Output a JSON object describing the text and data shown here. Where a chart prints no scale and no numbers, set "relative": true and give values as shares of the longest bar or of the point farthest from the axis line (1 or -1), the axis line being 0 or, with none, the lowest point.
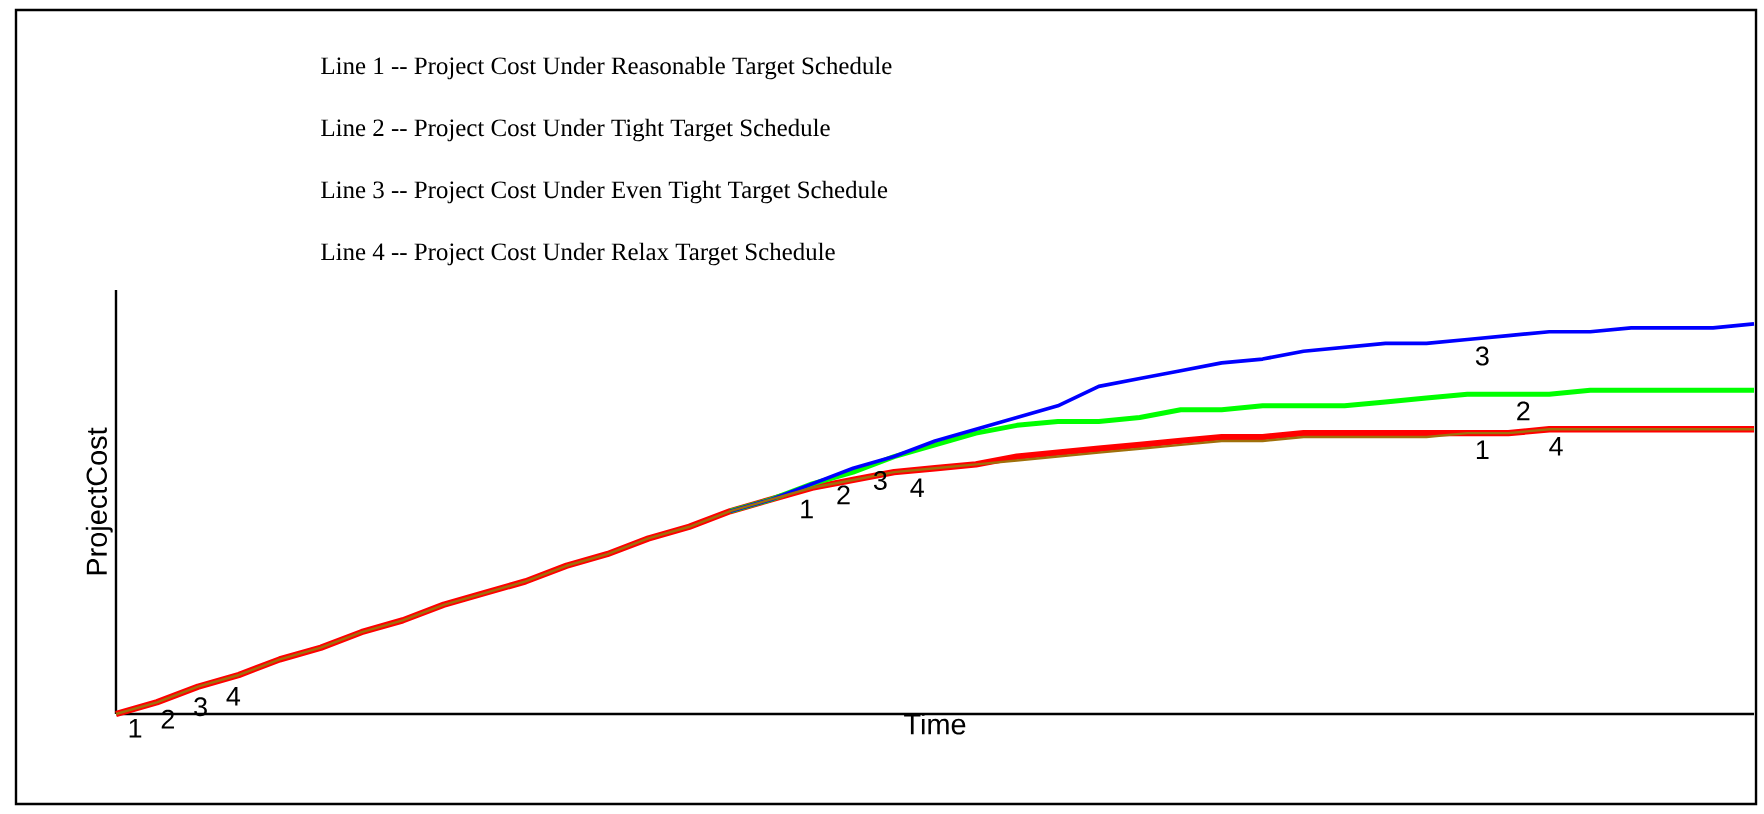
{
  "chart_data": {
    "type": "line",
    "relative": true,
    "xlabel": "Time",
    "ylabel": "ProjectCost",
    "annotations": [
      "Line 1 -- Project Cost Under Reasonable Target Schedule",
      "Line 2 --  Project Cost Under Tight Target Schedule",
      "Line 3 --  Project Cost Under Even Tight Target Schedule",
      "Line 4 --  Project Cost Under Relax Target Schedule"
    ],
    "categories": [
      null,
      null,
      null,
      null,
      null,
      null,
      null,
      null,
      null,
      null,
      null,
      null,
      null,
      null,
      null,
      null,
      null,
      null,
      null,
      null,
      null,
      null,
      null,
      null,
      null,
      null,
      null,
      null,
      null,
      null,
      null,
      null,
      null,
      null,
      null,
      null,
      null,
      null,
      null,
      null,
      null
    ],
    "marker": "none",
    "line_style": "solid",
    "series": [
      {
        "name": "1",
        "color": "#ff0000",
        "values": [
          0,
          0.03,
          0.07,
          0.1,
          0.14,
          0.17,
          0.21,
          0.24,
          0.28,
          0.31,
          0.34,
          0.38,
          0.41,
          0.45,
          0.48,
          0.52,
          0.55,
          0.58,
          0.6,
          0.62,
          0.63,
          0.64,
          0.66,
          0.67,
          0.68,
          0.69,
          0.7,
          0.71,
          0.71,
          0.72,
          0.72,
          0.72,
          0.72,
          0.72,
          0.72,
          0.73,
          0.73,
          0.73,
          0.73,
          0.73,
          0.73
        ]
      },
      {
        "name": "2",
        "color": "#00ff00",
        "values": [
          null,
          null,
          null,
          null,
          null,
          null,
          null,
          null,
          null,
          null,
          null,
          null,
          null,
          null,
          null,
          0.52,
          0.55,
          0.59,
          0.62,
          0.66,
          0.69,
          0.72,
          0.74,
          0.75,
          0.75,
          0.76,
          0.78,
          0.78,
          0.79,
          0.79,
          0.79,
          0.8,
          0.81,
          0.82,
          0.82,
          0.82,
          0.83,
          0.83,
          0.83,
          0.83,
          0.83
        ]
      },
      {
        "name": "3",
        "color": "#0000ff",
        "values": [
          null,
          null,
          null,
          null,
          null,
          null,
          null,
          null,
          null,
          null,
          null,
          null,
          null,
          null,
          null,
          0.52,
          0.55,
          0.59,
          0.63,
          0.66,
          0.7,
          0.73,
          0.76,
          0.79,
          0.84,
          0.86,
          0.88,
          0.9,
          0.91,
          0.93,
          0.94,
          0.95,
          0.95,
          0.96,
          0.97,
          0.98,
          0.98,
          0.99,
          0.99,
          0.99,
          1.0
        ]
      },
      {
        "name": "4",
        "color": "#a0700a",
        "values": [
          0,
          0.03,
          0.07,
          0.1,
          0.14,
          0.17,
          0.21,
          0.24,
          0.28,
          0.31,
          0.34,
          0.38,
          0.41,
          0.45,
          0.48,
          0.52,
          0.55,
          0.58,
          0.6,
          0.62,
          0.63,
          0.64,
          0.65,
          0.66,
          0.67,
          0.68,
          0.69,
          0.7,
          0.7,
          0.71,
          0.71,
          0.71,
          0.71,
          0.72,
          0.72,
          0.73,
          0.73,
          0.73,
          0.73,
          0.73,
          0.73
        ]
      }
    ]
  }
}
